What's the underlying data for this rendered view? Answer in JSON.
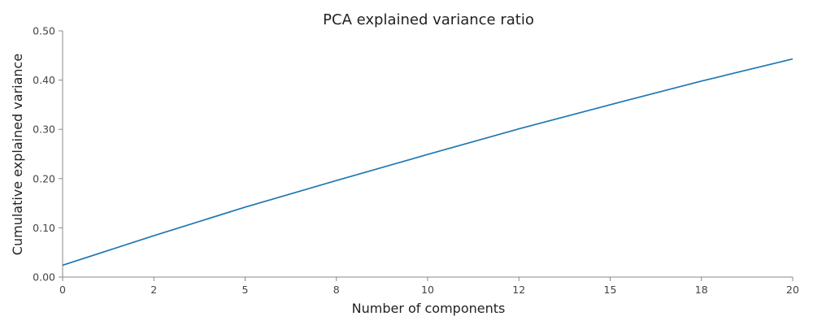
{
  "chart_data": {
    "type": "line",
    "title": "PCA explained variance ratio",
    "xlabel": "Number of components",
    "ylabel": "Cumulative explained variance",
    "xlim": [
      0,
      20
    ],
    "ylim": [
      0,
      0.5
    ],
    "x_ticks": [
      {
        "value": 0,
        "label": "0"
      },
      {
        "value": 2.5,
        "label": "2"
      },
      {
        "value": 5,
        "label": "5"
      },
      {
        "value": 7.5,
        "label": "8"
      },
      {
        "value": 10,
        "label": "10"
      },
      {
        "value": 12.5,
        "label": "12"
      },
      {
        "value": 15,
        "label": "15"
      },
      {
        "value": 17.5,
        "label": "18"
      },
      {
        "value": 20,
        "label": "20"
      }
    ],
    "y_ticks": [
      {
        "value": 0,
        "label": "0.00"
      },
      {
        "value": 0.1,
        "label": "0.10"
      },
      {
        "value": 0.2,
        "label": "0.20"
      },
      {
        "value": 0.3,
        "label": "0.30"
      },
      {
        "value": 0.4,
        "label": "0.40"
      },
      {
        "value": 0.5,
        "label": "0.50"
      }
    ],
    "grid": false,
    "series": [
      {
        "color": "#1f77b4",
        "x": [
          0,
          2.5,
          5,
          7.5,
          10,
          12.5,
          15,
          17.5,
          20
        ],
        "y": [
          0.024,
          0.084,
          0.142,
          0.196,
          0.249,
          0.301,
          0.35,
          0.398,
          0.443
        ]
      }
    ]
  }
}
